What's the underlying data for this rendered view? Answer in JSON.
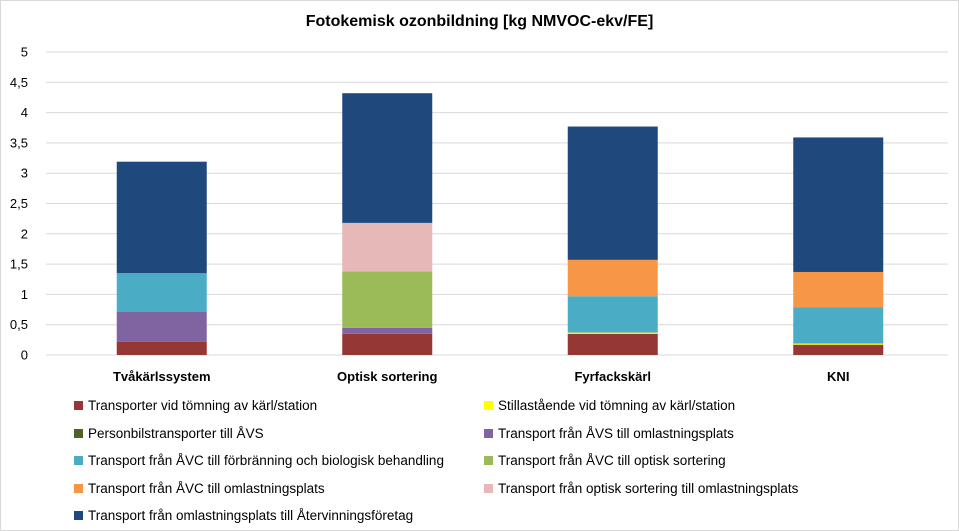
{
  "chart_data": {
    "type": "bar",
    "stacked": true,
    "title": "Fotokemisk ozonbildning [kg NMVOC-ekv/FE]",
    "xlabel": "",
    "ylabel": "",
    "ylim": [
      0,
      5
    ],
    "yticks": [
      "0",
      "0,5",
      "1",
      "1,5",
      "2",
      "2,5",
      "3",
      "3,5",
      "4",
      "4,5",
      "5"
    ],
    "grid": true,
    "legend_position": "bottom",
    "categories": [
      "Tvåkärlssystem",
      "Optisk sortering",
      "Fyrfackskärl",
      "KNI"
    ],
    "series": [
      {
        "name": "Transporter vid tömning av kärl/station",
        "color": "#953735",
        "values": [
          0.22,
          0.35,
          0.35,
          0.17
        ]
      },
      {
        "name": "Stillastående vid tömning av kärl/station",
        "color": "#ffff00",
        "values": [
          0.0,
          0.0,
          0.02,
          0.02
        ]
      },
      {
        "name": "Personbilstransporter till ÅVS",
        "color": "#4f6228",
        "values": [
          0.0,
          0.0,
          0.0,
          0.0
        ]
      },
      {
        "name": "Transport från ÅVS till omlastningsplats",
        "color": "#8064a2",
        "values": [
          0.49,
          0.1,
          0.0,
          0.0
        ]
      },
      {
        "name": "Transport från ÅVC till förbränning och biologisk behandling",
        "color": "#4bacc6",
        "values": [
          0.64,
          0.0,
          0.6,
          0.6
        ]
      },
      {
        "name": "Transport från ÅVC till optisk sortering",
        "color": "#9bbb59",
        "values": [
          0.0,
          0.93,
          0.0,
          0.0
        ]
      },
      {
        "name": "Transport från ÅVC till omlastningsplats",
        "color": "#f79646",
        "values": [
          0.0,
          0.0,
          0.6,
          0.58
        ]
      },
      {
        "name": "Transport från optisk sortering till omlastningsplats",
        "color": "#e6b9b8",
        "values": [
          0.0,
          0.8,
          0.0,
          0.0
        ]
      },
      {
        "name": "Transport från omlastningsplats till Återvinningsföretag",
        "color": "#1f497d",
        "values": [
          1.84,
          2.14,
          2.2,
          2.22
        ]
      }
    ]
  }
}
